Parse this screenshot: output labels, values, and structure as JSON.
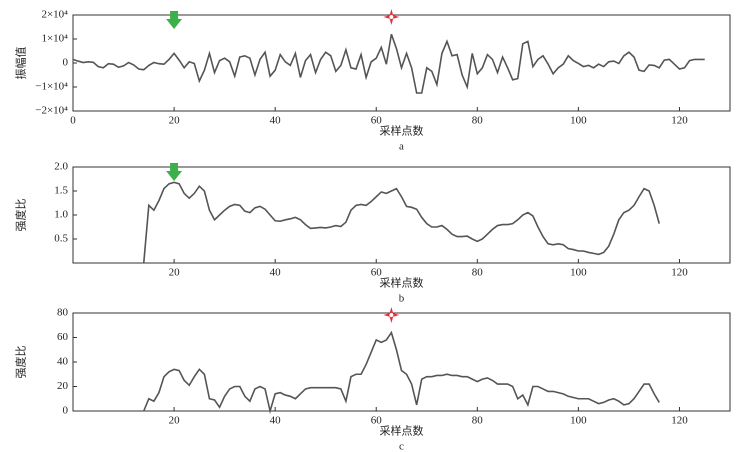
{
  "chart_data": [
    {
      "type": "line",
      "ylabel": "振幅值",
      "xlabel": "采样点数",
      "caption": "a",
      "color": "#555555",
      "xlim": [
        0,
        130
      ],
      "xticks": [
        0,
        20,
        40,
        60,
        80,
        100,
        120
      ],
      "ylim": [
        -20000,
        20000
      ],
      "yticks": [
        {
          "value": 20000,
          "label": "2×10⁴"
        },
        {
          "value": 10000,
          "label": "1×10⁴"
        },
        0,
        {
          "value": -10000,
          "label": "−1×10⁴"
        },
        {
          "value": -20000,
          "label": "−2×10⁴"
        }
      ],
      "x": [
        0,
        1,
        2,
        3,
        4,
        5,
        6,
        7,
        8,
        9,
        10,
        11,
        12,
        13,
        14,
        15,
        16,
        17,
        18,
        19,
        20,
        21,
        22,
        23,
        24,
        25,
        26,
        27,
        28,
        29,
        30,
        31,
        32,
        33,
        34,
        35,
        36,
        37,
        38,
        39,
        40,
        41,
        42,
        43,
        44,
        45,
        46,
        47,
        48,
        49,
        50,
        51,
        52,
        53,
        54,
        55,
        56,
        57,
        58,
        59,
        60,
        61,
        62,
        63,
        64,
        65,
        66,
        67,
        68,
        69,
        70,
        71,
        72,
        73,
        74,
        75,
        76,
        77,
        78,
        79,
        80,
        81,
        82,
        83,
        84,
        85,
        86,
        87,
        88,
        89,
        90,
        91,
        92,
        93,
        94,
        95,
        96,
        97,
        98,
        99,
        100,
        101,
        102,
        103,
        104,
        105,
        106,
        107,
        108,
        109,
        110,
        111,
        112,
        113,
        114,
        115,
        116,
        117,
        118,
        119,
        120,
        121,
        122,
        123,
        124,
        125
      ],
      "values": [
        1500,
        800,
        200,
        500,
        300,
        -1500,
        -2000,
        -300,
        -500,
        -1800,
        -1200,
        200,
        -800,
        -2500,
        -2800,
        -1000,
        200,
        -300,
        -500,
        1500,
        4000,
        1200,
        -2000,
        500,
        -200,
        -7500,
        -3000,
        4000,
        -4000,
        1000,
        2000,
        500,
        -5500,
        2500,
        3000,
        2000,
        -5000,
        1500,
        4500,
        -5500,
        -3000,
        3500,
        500,
        -1000,
        4000,
        -6000,
        1000,
        3500,
        -4000,
        1500,
        4500,
        3000,
        -3500,
        -1000,
        5500,
        -2000,
        -2500,
        3500,
        -6000,
        500,
        2000,
        6500,
        -500,
        12000,
        6000,
        -2000,
        4000,
        -2000,
        -12500,
        -12500,
        -2000,
        -3500,
        -9000,
        4000,
        9000,
        3000,
        3500,
        -5000,
        -10000,
        4000,
        -4500,
        -2000,
        3500,
        1500,
        -4000,
        2500,
        -2000,
        -7000,
        -6500,
        8000,
        9000,
        -1500,
        1500,
        3000,
        -400,
        -4500,
        -2000,
        -500,
        3000,
        1000,
        -200,
        -1500,
        -1000,
        -2000,
        -500,
        -1500,
        500,
        800,
        -200,
        3000,
        4500,
        2500,
        -3000,
        -3500,
        -800,
        -1000,
        -2000,
        1200,
        1500,
        -500,
        -2500,
        -2000,
        1000,
        1500,
        1500,
        1500
      ],
      "markers": [
        {
          "x": 20,
          "shape": "arrow",
          "color": "#3cb04a"
        },
        {
          "x": 63,
          "shape": "star",
          "color": "#e0303a"
        }
      ]
    },
    {
      "type": "line",
      "ylabel": "强度比",
      "xlabel": "采样点数",
      "caption": "b",
      "color": "#555555",
      "xlim": [
        0,
        130
      ],
      "xticks": [
        20,
        40,
        60,
        80,
        100,
        120
      ],
      "ylim": [
        0,
        2
      ],
      "yticks": [
        {
          "value": 2,
          "label": "2.0"
        },
        1.5,
        {
          "value": 1,
          "label": "1.0"
        },
        0.5
      ],
      "x": [
        14,
        15,
        16,
        17,
        18,
        19,
        20,
        21,
        22,
        23,
        24,
        25,
        26,
        27,
        28,
        29,
        30,
        31,
        32,
        33,
        34,
        35,
        36,
        37,
        38,
        39,
        40,
        41,
        42,
        43,
        44,
        45,
        46,
        47,
        48,
        49,
        50,
        51,
        52,
        53,
        54,
        55,
        56,
        57,
        58,
        59,
        60,
        61,
        62,
        63,
        64,
        65,
        66,
        67,
        68,
        69,
        70,
        71,
        72,
        73,
        74,
        75,
        76,
        77,
        78,
        79,
        80,
        81,
        82,
        83,
        84,
        85,
        86,
        87,
        88,
        89,
        90,
        91,
        92,
        93,
        94,
        95,
        96,
        97,
        98,
        99,
        100,
        101,
        102,
        103,
        104,
        105,
        106,
        107,
        108,
        109,
        110,
        111,
        112,
        113,
        114,
        115,
        116
      ],
      "values": [
        0,
        1.2,
        1.1,
        1.3,
        1.55,
        1.65,
        1.68,
        1.65,
        1.45,
        1.35,
        1.45,
        1.6,
        1.5,
        1.1,
        0.9,
        1.0,
        1.1,
        1.18,
        1.22,
        1.2,
        1.08,
        1.05,
        1.15,
        1.18,
        1.12,
        1.0,
        0.88,
        0.87,
        0.9,
        0.92,
        0.95,
        0.9,
        0.8,
        0.72,
        0.73,
        0.74,
        0.73,
        0.75,
        0.78,
        0.76,
        0.85,
        1.1,
        1.2,
        1.22,
        1.2,
        1.28,
        1.38,
        1.48,
        1.45,
        1.5,
        1.55,
        1.38,
        1.18,
        1.16,
        1.12,
        0.95,
        0.82,
        0.75,
        0.75,
        0.78,
        0.7,
        0.6,
        0.55,
        0.55,
        0.56,
        0.5,
        0.45,
        0.5,
        0.6,
        0.7,
        0.78,
        0.8,
        0.8,
        0.82,
        0.9,
        1.0,
        1.05,
        0.98,
        0.75,
        0.55,
        0.4,
        0.38,
        0.4,
        0.38,
        0.3,
        0.28,
        0.25,
        0.25,
        0.22,
        0.2,
        0.18,
        0.22,
        0.35,
        0.6,
        0.9,
        1.05,
        1.1,
        1.2,
        1.38,
        1.55,
        1.5,
        1.2,
        0.82
      ],
      "markers": [
        {
          "x": 20,
          "shape": "arrow",
          "color": "#3cb04a"
        }
      ]
    },
    {
      "type": "line",
      "ylabel": "强度比",
      "xlabel": "采样点数",
      "caption": "c",
      "color": "#555555",
      "xlim": [
        0,
        130
      ],
      "xticks": [
        20,
        40,
        60,
        80,
        100,
        120
      ],
      "ylim": [
        0,
        80
      ],
      "yticks": [
        80,
        60,
        40,
        20,
        0
      ],
      "x": [
        14,
        15,
        16,
        17,
        18,
        19,
        20,
        21,
        22,
        23,
        24,
        25,
        26,
        27,
        28,
        29,
        30,
        31,
        32,
        33,
        34,
        35,
        36,
        37,
        38,
        39,
        40,
        41,
        42,
        43,
        44,
        45,
        46,
        47,
        48,
        49,
        50,
        51,
        52,
        53,
        54,
        55,
        56,
        57,
        58,
        59,
        60,
        61,
        62,
        63,
        64,
        65,
        66,
        67,
        68,
        69,
        70,
        71,
        72,
        73,
        74,
        75,
        76,
        77,
        78,
        79,
        80,
        81,
        82,
        83,
        84,
        85,
        86,
        87,
        88,
        89,
        90,
        91,
        92,
        93,
        94,
        95,
        96,
        97,
        98,
        99,
        100,
        101,
        102,
        103,
        104,
        105,
        106,
        107,
        108,
        109,
        110,
        111,
        112,
        113,
        114,
        115,
        116
      ],
      "values": [
        0,
        10,
        8,
        15,
        28,
        32,
        34,
        33,
        25,
        21,
        28,
        34,
        30,
        10,
        9,
        3,
        12,
        18,
        20,
        20,
        12,
        8,
        18,
        20,
        18,
        0,
        14,
        15,
        13,
        12,
        10,
        14,
        18,
        19,
        19,
        19,
        19,
        19,
        19,
        18,
        8,
        28,
        30,
        30,
        38,
        48,
        58,
        56,
        58,
        64,
        50,
        33,
        30,
        22,
        5,
        26,
        28,
        28,
        29,
        29,
        30,
        29,
        29,
        28,
        28,
        26,
        24,
        26,
        27,
        25,
        22,
        22,
        22,
        20,
        10,
        13,
        5,
        20,
        20,
        18,
        16,
        16,
        15,
        14,
        12,
        11,
        10,
        10,
        10,
        8,
        6,
        7,
        9,
        10,
        8,
        5,
        6,
        10,
        16,
        22,
        22,
        14,
        7
      ],
      "markers": [
        {
          "x": 63,
          "shape": "star",
          "color": "#e0303a"
        }
      ]
    }
  ]
}
